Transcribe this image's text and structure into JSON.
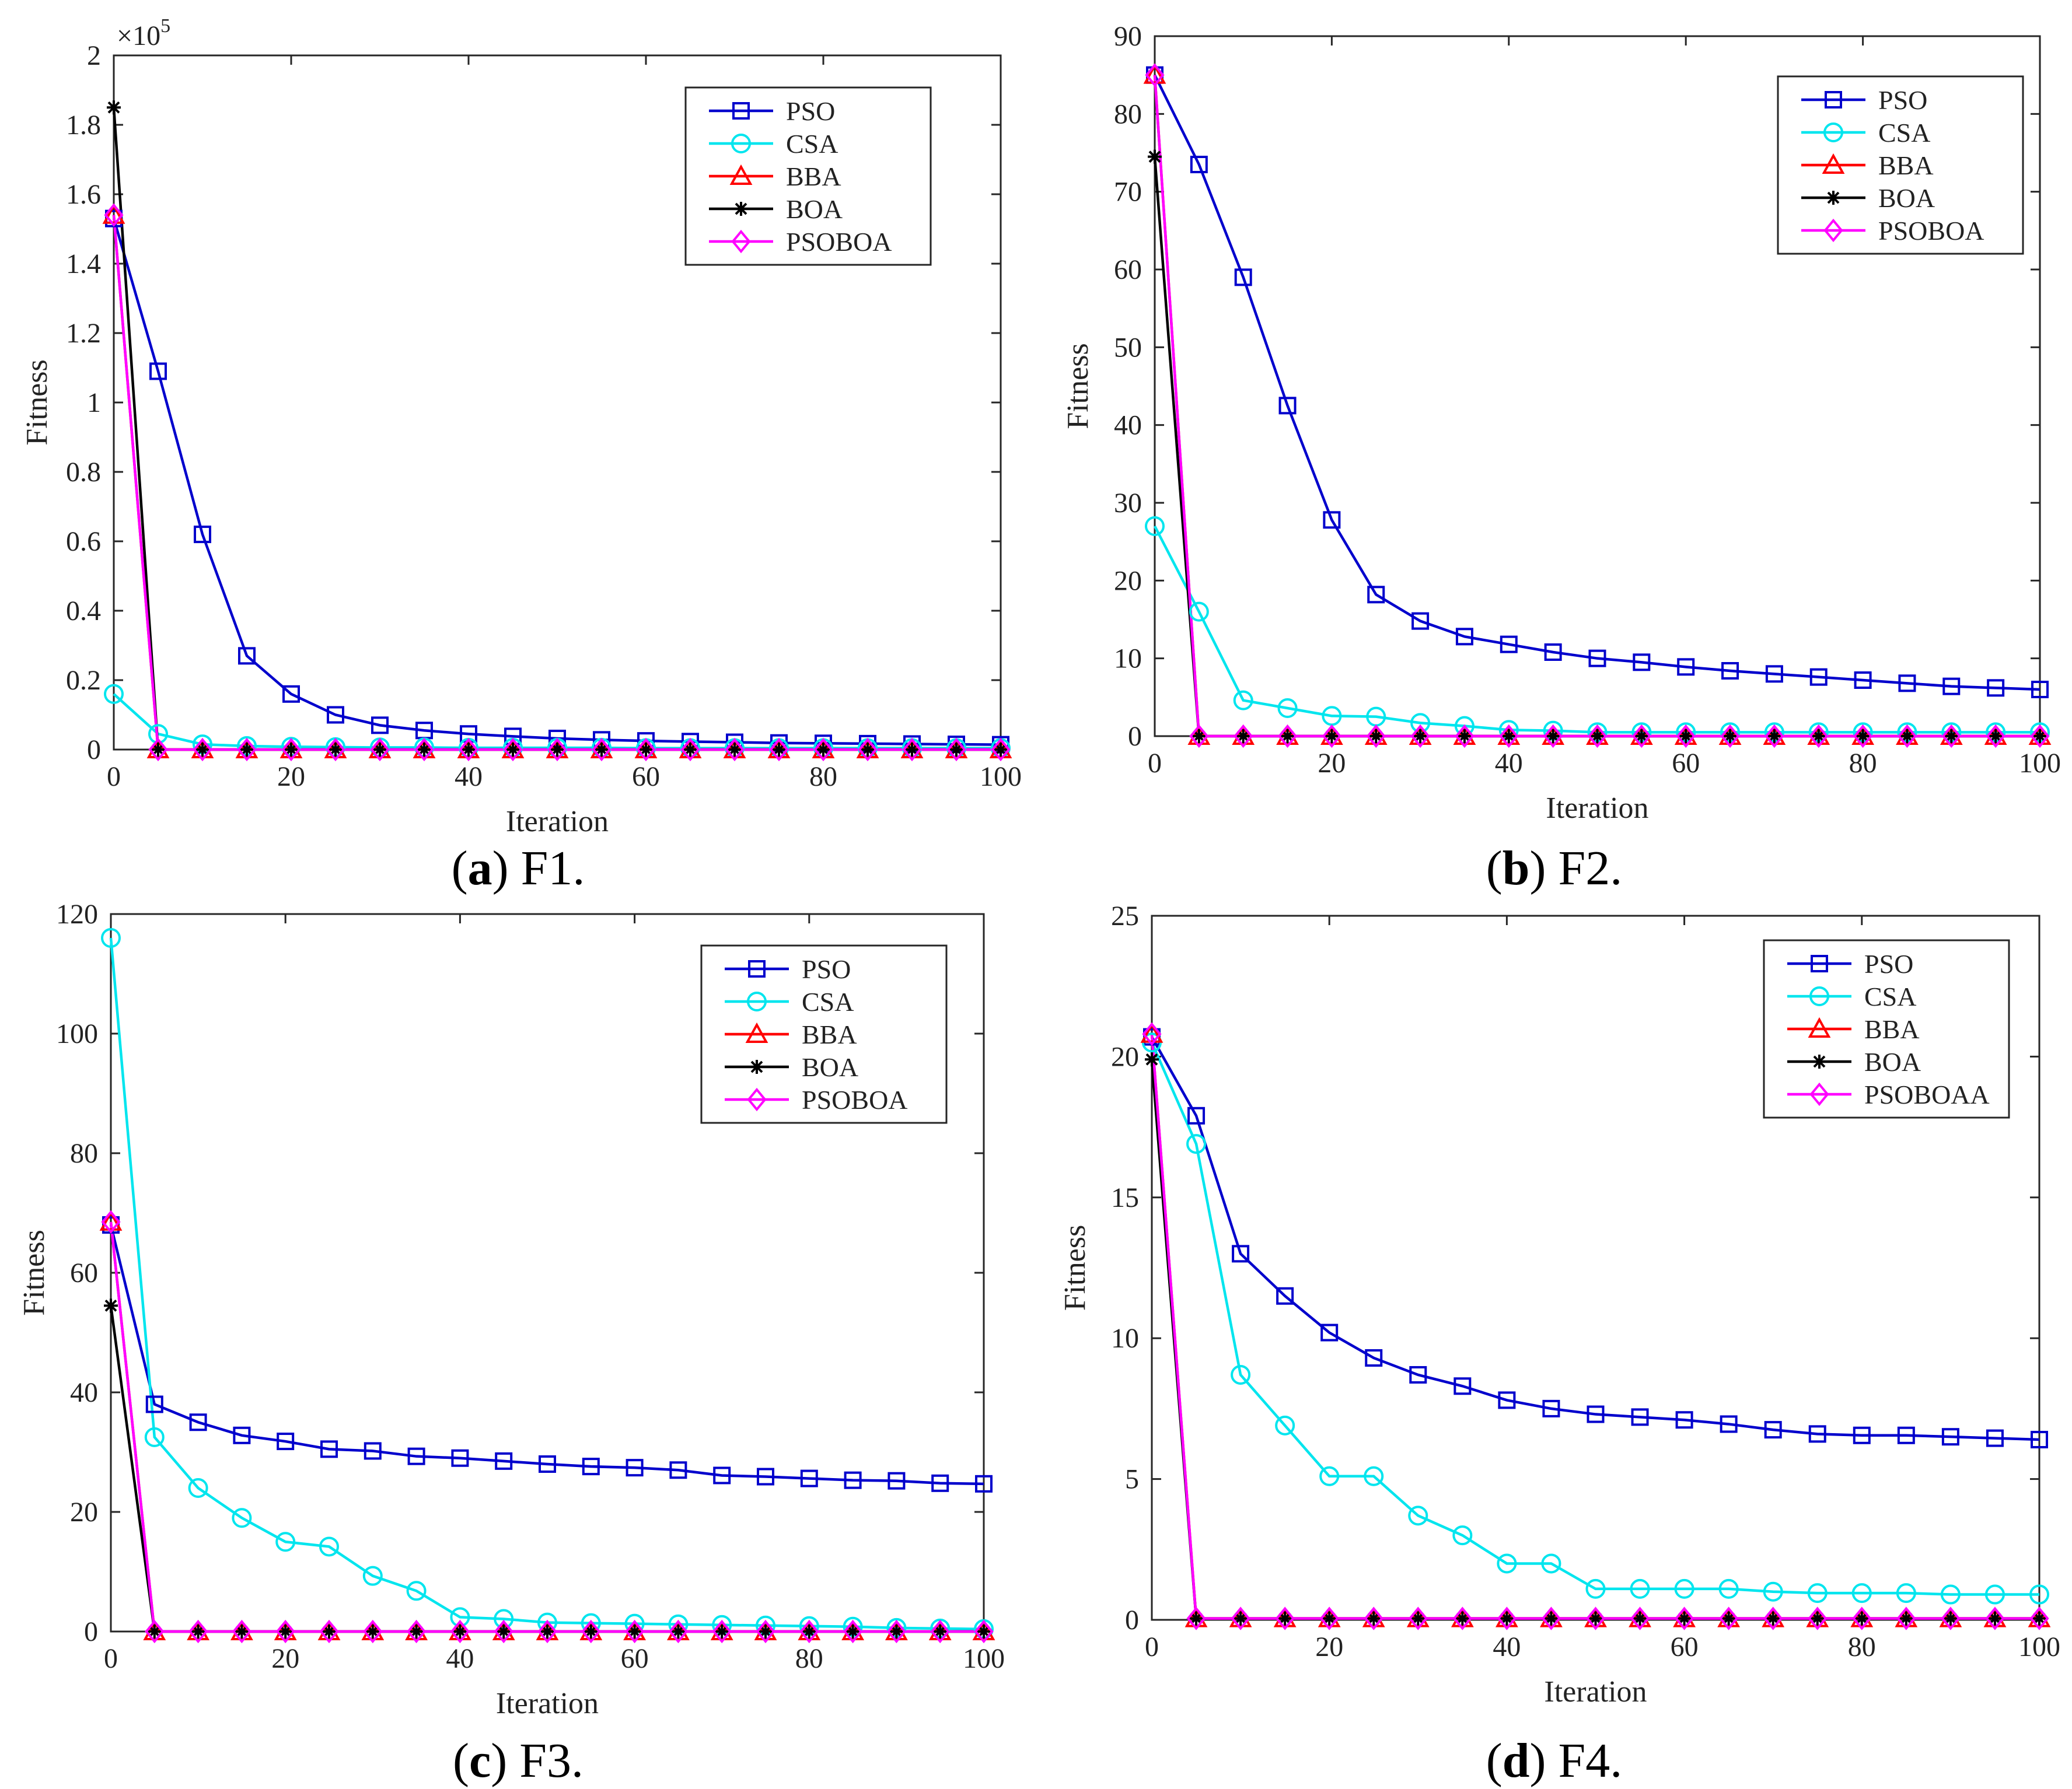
{
  "figure": {
    "panels": [
      {
        "caption_letter": "a",
        "caption_rest": ") F1.",
        "caption_open": "("
      },
      {
        "caption_letter": "b",
        "caption_rest": ") F2.",
        "caption_open": "("
      },
      {
        "caption_letter": "c",
        "caption_rest": ") F3.",
        "caption_open": "("
      },
      {
        "caption_letter": "d",
        "caption_rest": ") F4.",
        "caption_open": "("
      }
    ]
  },
  "chart_data": [
    {
      "type": "line",
      "title": "",
      "xlabel": "Iteration",
      "ylabel": "Fitness",
      "exponent_label": "×10",
      "exponent_power": "5",
      "xlim": [
        0,
        100
      ],
      "ylim": [
        0,
        2
      ],
      "xticks": [
        0,
        20,
        40,
        60,
        80,
        100
      ],
      "xtick_labels": [
        "0",
        "20",
        "40",
        "60",
        "80",
        "100"
      ],
      "yticks": [
        0,
        0.2,
        0.4,
        0.6,
        0.8,
        1,
        1.2,
        1.4,
        1.6,
        1.8,
        2
      ],
      "ytick_labels": [
        "0",
        "0.2",
        "0.4",
        "0.6",
        "0.8",
        "1",
        "1.2",
        "1.4",
        "1.6",
        "1.8",
        "2"
      ],
      "grid": false,
      "legend_position": "top-right",
      "x": [
        0,
        5,
        10,
        15,
        20,
        25,
        30,
        35,
        40,
        45,
        50,
        55,
        60,
        65,
        70,
        75,
        80,
        85,
        90,
        95,
        100
      ],
      "series": [
        {
          "name": "PSO",
          "color": "#0000cc",
          "marker": "square",
          "values": [
            1.53,
            1.09,
            0.62,
            0.27,
            0.16,
            0.1,
            0.07,
            0.055,
            0.045,
            0.038,
            0.032,
            0.028,
            0.025,
            0.023,
            0.021,
            0.019,
            0.018,
            0.017,
            0.016,
            0.015,
            0.014
          ]
        },
        {
          "name": "CSA",
          "color": "#00e5ee",
          "marker": "circle",
          "values": [
            0.16,
            0.045,
            0.015,
            0.01,
            0.008,
            0.007,
            0.006,
            0.006,
            0.005,
            0.005,
            0.005,
            0.005,
            0.004,
            0.004,
            0.004,
            0.004,
            0.004,
            0.004,
            0.004,
            0.004,
            0.004
          ]
        },
        {
          "name": "BBA",
          "color": "#ff0000",
          "marker": "triangle",
          "values": [
            1.54,
            0,
            0,
            0,
            0,
            0,
            0,
            0,
            0,
            0,
            0,
            0,
            0,
            0,
            0,
            0,
            0,
            0,
            0,
            0,
            0
          ]
        },
        {
          "name": "BOA",
          "color": "#000000",
          "marker": "asterisk",
          "values": [
            1.85,
            0,
            0,
            0,
            0,
            0,
            0,
            0,
            0,
            0,
            0,
            0,
            0,
            0,
            0,
            0,
            0,
            0,
            0,
            0,
            0
          ]
        },
        {
          "name": "PSOBOA",
          "color": "#ff00ff",
          "marker": "diamond",
          "values": [
            1.54,
            0,
            0,
            0,
            0,
            0,
            0,
            0,
            0,
            0,
            0,
            0,
            0,
            0,
            0,
            0,
            0,
            0,
            0,
            0,
            0
          ]
        }
      ]
    },
    {
      "type": "line",
      "title": "",
      "xlabel": "Iteration",
      "ylabel": "Fitness",
      "xlim": [
        0,
        100
      ],
      "ylim": [
        0,
        90
      ],
      "xticks": [
        0,
        20,
        40,
        60,
        80,
        100
      ],
      "xtick_labels": [
        "0",
        "20",
        "40",
        "60",
        "80",
        "100"
      ],
      "yticks": [
        0,
        10,
        20,
        30,
        40,
        50,
        60,
        70,
        80,
        90
      ],
      "ytick_labels": [
        "0",
        "10",
        "20",
        "30",
        "40",
        "50",
        "60",
        "70",
        "80",
        "90"
      ],
      "grid": false,
      "legend_position": "top-right",
      "x": [
        0,
        5,
        10,
        15,
        20,
        25,
        30,
        35,
        40,
        45,
        50,
        55,
        60,
        65,
        70,
        75,
        80,
        85,
        90,
        95,
        100
      ],
      "series": [
        {
          "name": "PSO",
          "color": "#0000cc",
          "marker": "square",
          "values": [
            85.0,
            73.5,
            59.0,
            42.5,
            27.8,
            18.2,
            14.8,
            12.8,
            11.8,
            10.8,
            10.0,
            9.5,
            8.9,
            8.4,
            8.0,
            7.6,
            7.2,
            6.8,
            6.4,
            6.2,
            6.0
          ]
        },
        {
          "name": "CSA",
          "color": "#00e5ee",
          "marker": "circle",
          "values": [
            27.0,
            16.0,
            4.6,
            3.6,
            2.6,
            2.5,
            1.7,
            1.3,
            0.8,
            0.7,
            0.5,
            0.5,
            0.5,
            0.5,
            0.5,
            0.5,
            0.5,
            0.5,
            0.5,
            0.5,
            0.5
          ]
        },
        {
          "name": "BBA",
          "color": "#ff0000",
          "marker": "triangle",
          "values": [
            85.0,
            0,
            0,
            0,
            0,
            0,
            0,
            0,
            0,
            0,
            0,
            0,
            0,
            0,
            0,
            0,
            0,
            0,
            0,
            0,
            0
          ]
        },
        {
          "name": "BOA",
          "color": "#000000",
          "marker": "asterisk",
          "values": [
            74.5,
            0,
            0,
            0,
            0,
            0,
            0,
            0,
            0,
            0,
            0,
            0,
            0,
            0,
            0,
            0,
            0,
            0,
            0,
            0,
            0
          ]
        },
        {
          "name": "PSOBOA",
          "color": "#ff00ff",
          "marker": "diamond",
          "values": [
            85.0,
            0,
            0,
            0,
            0,
            0,
            0,
            0,
            0,
            0,
            0,
            0,
            0,
            0,
            0,
            0,
            0,
            0,
            0,
            0,
            0
          ]
        }
      ]
    },
    {
      "type": "line",
      "title": "",
      "xlabel": "Iteration",
      "ylabel": "Fitness",
      "xlim": [
        0,
        100
      ],
      "ylim": [
        0,
        120
      ],
      "xticks": [
        0,
        20,
        40,
        60,
        80,
        100
      ],
      "xtick_labels": [
        "0",
        "20",
        "40",
        "60",
        "80",
        "100"
      ],
      "yticks": [
        0,
        20,
        40,
        60,
        80,
        100,
        120
      ],
      "ytick_labels": [
        "0",
        "20",
        "40",
        "60",
        "80",
        "100",
        "120"
      ],
      "grid": false,
      "legend_position": "top-right",
      "x": [
        0,
        5,
        10,
        15,
        20,
        25,
        30,
        35,
        40,
        45,
        50,
        55,
        60,
        65,
        70,
        75,
        80,
        85,
        90,
        95,
        100
      ],
      "series": [
        {
          "name": "PSO",
          "color": "#0000cc",
          "marker": "square",
          "values": [
            68.0,
            38.0,
            35.0,
            32.8,
            31.8,
            30.5,
            30.2,
            29.3,
            29.0,
            28.5,
            28.0,
            27.6,
            27.4,
            27.0,
            26.1,
            25.9,
            25.6,
            25.3,
            25.2,
            24.8,
            24.7
          ]
        },
        {
          "name": "CSA",
          "color": "#00e5ee",
          "marker": "circle",
          "values": [
            116.0,
            32.5,
            24.0,
            19.0,
            15.0,
            14.2,
            9.3,
            6.8,
            2.4,
            2.1,
            1.5,
            1.4,
            1.3,
            1.2,
            1.1,
            1.0,
            0.9,
            0.8,
            0.6,
            0.5,
            0.4
          ]
        },
        {
          "name": "BBA",
          "color": "#ff0000",
          "marker": "triangle",
          "values": [
            68.5,
            0,
            0,
            0,
            0,
            0,
            0,
            0,
            0,
            0,
            0,
            0,
            0,
            0,
            0,
            0,
            0,
            0,
            0,
            0,
            0
          ]
        },
        {
          "name": "BOA",
          "color": "#000000",
          "marker": "asterisk",
          "values": [
            54.5,
            0,
            0,
            0,
            0,
            0,
            0,
            0,
            0,
            0,
            0,
            0,
            0,
            0,
            0,
            0,
            0,
            0,
            0,
            0,
            0
          ]
        },
        {
          "name": "PSOBOA",
          "color": "#ff00ff",
          "marker": "diamond",
          "values": [
            68.5,
            0,
            0,
            0,
            0,
            0,
            0,
            0,
            0,
            0,
            0,
            0,
            0,
            0,
            0,
            0,
            0,
            0,
            0,
            0,
            0
          ]
        }
      ]
    },
    {
      "type": "line",
      "title": "",
      "xlabel": "Iteration",
      "ylabel": "Fitness",
      "xlim": [
        0,
        100
      ],
      "ylim": [
        0,
        25
      ],
      "xticks": [
        0,
        20,
        40,
        60,
        80,
        100
      ],
      "xtick_labels": [
        "0",
        "20",
        "40",
        "60",
        "80",
        "100"
      ],
      "yticks": [
        0,
        5,
        10,
        15,
        20,
        25
      ],
      "ytick_labels": [
        "0",
        "5",
        "10",
        "15",
        "20",
        "25"
      ],
      "grid": false,
      "legend_position": "top-right",
      "x": [
        0,
        5,
        10,
        15,
        20,
        25,
        30,
        35,
        40,
        45,
        50,
        55,
        60,
        65,
        70,
        75,
        80,
        85,
        90,
        95,
        100
      ],
      "series": [
        {
          "name": "PSO",
          "color": "#0000cc",
          "marker": "square",
          "values": [
            20.7,
            17.9,
            13.0,
            11.5,
            10.2,
            9.3,
            8.7,
            8.3,
            7.8,
            7.5,
            7.3,
            7.2,
            7.1,
            6.95,
            6.75,
            6.6,
            6.55,
            6.55,
            6.5,
            6.45,
            6.4
          ]
        },
        {
          "name": "CSA",
          "color": "#00e5ee",
          "marker": "circle",
          "values": [
            20.5,
            16.9,
            8.7,
            6.9,
            5.1,
            5.1,
            3.7,
            3.0,
            2.0,
            2.0,
            1.1,
            1.1,
            1.1,
            1.1,
            1.0,
            0.95,
            0.95,
            0.95,
            0.9,
            0.9,
            0.9
          ]
        },
        {
          "name": "BBA",
          "color": "#ff0000",
          "marker": "triangle",
          "values": [
            20.8,
            0.05,
            0.05,
            0.05,
            0.05,
            0.05,
            0.05,
            0.05,
            0.05,
            0.05,
            0.05,
            0.05,
            0.05,
            0.05,
            0.05,
            0.05,
            0.05,
            0.05,
            0.05,
            0.05,
            0.05
          ]
        },
        {
          "name": "BOA",
          "color": "#000000",
          "marker": "asterisk",
          "values": [
            19.9,
            0.05,
            0.05,
            0.05,
            0.05,
            0.05,
            0.05,
            0.05,
            0.05,
            0.05,
            0.05,
            0.05,
            0.05,
            0.05,
            0.05,
            0.05,
            0.05,
            0.05,
            0.05,
            0.05,
            0.05
          ]
        },
        {
          "name": "PSOBOAA",
          "color": "#ff00ff",
          "marker": "diamond",
          "values": [
            20.8,
            0.05,
            0.05,
            0.05,
            0.05,
            0.05,
            0.05,
            0.05,
            0.05,
            0.05,
            0.05,
            0.05,
            0.05,
            0.05,
            0.05,
            0.05,
            0.05,
            0.05,
            0.05,
            0.05,
            0.05
          ]
        }
      ]
    }
  ]
}
